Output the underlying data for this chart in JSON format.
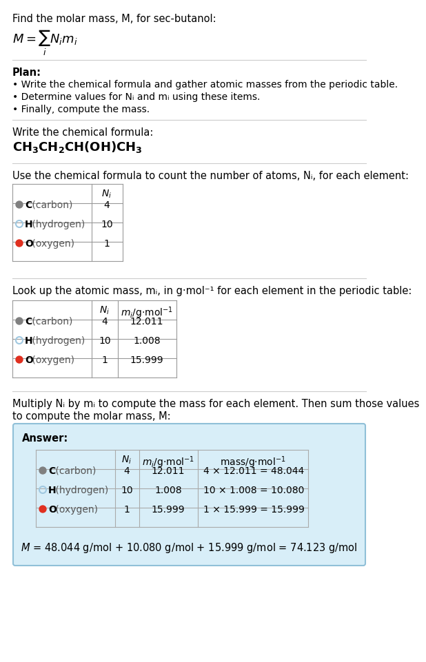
{
  "title_line": "Find the molar mass, M, for sec-butanol:",
  "formula_display": "M = ∑ Nᵢmᵢ",
  "formula_sub": "i",
  "plan_header": "Plan:",
  "plan_bullets": [
    "• Write the chemical formula and gather atomic masses from the periodic table.",
    "• Determine values for Nᵢ and mᵢ using these items.",
    "• Finally, compute the mass."
  ],
  "chem_formula_header": "Write the chemical formula:",
  "chem_formula": "CH₃CH₂CH(OH)CH₃",
  "count_header": "Use the chemical formula to count the number of atoms, Nᵢ, for each element:",
  "table1_cols": [
    "",
    "Nᵢ"
  ],
  "table1_rows": [
    [
      "C (carbon)",
      "4"
    ],
    [
      "H (hydrogen)",
      "10"
    ],
    [
      "O (oxygen)",
      "1"
    ]
  ],
  "lookup_header": "Look up the atomic mass, mᵢ, in g·mol⁻¹ for each element in the periodic table:",
  "table2_cols": [
    "",
    "Nᵢ",
    "mᵢ/g·mol⁻¹"
  ],
  "table2_rows": [
    [
      "C (carbon)",
      "4",
      "12.011"
    ],
    [
      "H (hydrogen)",
      "10",
      "1.008"
    ],
    [
      "O (oxygen)",
      "1",
      "15.999"
    ]
  ],
  "multiply_header": "Multiply Nᵢ by mᵢ to compute the mass for each element. Then sum those values\nto compute the molar mass, M:",
  "answer_label": "Answer:",
  "table3_cols": [
    "",
    "Nᵢ",
    "mᵢ/g·mol⁻¹",
    "mass/g·mol⁻¹"
  ],
  "table3_rows": [
    [
      "C (carbon)",
      "4",
      "12.011",
      "4 × 12.011 = 48.044"
    ],
    [
      "H (hydrogen)",
      "10",
      "1.008",
      "10 × 1.008 = 10.080"
    ],
    [
      "O (oxygen)",
      "1",
      "15.999",
      "1 × 15.999 = 15.999"
    ]
  ],
  "final_answer": "M = 48.044 g/mol + 10.080 g/mol + 15.999 g/mol = 74.123 g/mol",
  "element_colors": {
    "C": "#808080",
    "H": "#a0c8e0",
    "O": "#e03020"
  },
  "answer_box_color": "#d8eef8",
  "answer_box_border": "#90c0d8",
  "bg_color": "#ffffff",
  "text_color": "#000000",
  "separator_color": "#cccccc"
}
